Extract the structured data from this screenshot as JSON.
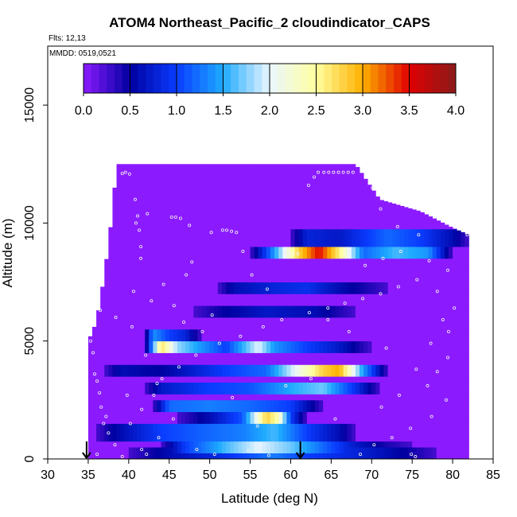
{
  "chart_data": {
    "type": "heatmap",
    "title": "ATOM4 Northeast_Pacific_2 cloudindicator_CAPS",
    "flights_label": "Flts: 12,13",
    "date_label": "MMDD: 0519,0521",
    "xlabel": "Latitude (deg N)",
    "ylabel": "Altitude (m)",
    "xlim": [
      30,
      85
    ],
    "ylim": [
      0,
      17500
    ],
    "x_ticks": [
      "30",
      "35",
      "40",
      "45",
      "50",
      "55",
      "60",
      "65",
      "70",
      "75",
      "80",
      "85"
    ],
    "y_ticks": [
      "0",
      "5000",
      "10000",
      "15000"
    ],
    "colorbar": {
      "range": [
        0,
        4
      ],
      "tick_labels": [
        "0.0",
        "0.5",
        "1.0",
        "1.5",
        "2.0",
        "2.5",
        "3.0",
        "3.5",
        "4.0"
      ],
      "colors": [
        "#8c1aff",
        "#0000a0",
        "#0a3cff",
        "#1eaaff",
        "#eaf6ff",
        "#ffffa0",
        "#ffb000",
        "#e00000",
        "#8b1a1a"
      ]
    },
    "background_value": 0,
    "column_extent": [
      {
        "lat": 35,
        "top": 5000
      },
      {
        "lat": 36,
        "top": 5800
      },
      {
        "lat": 37,
        "top": 7800
      },
      {
        "lat": 38,
        "top": 10500
      },
      {
        "lat": 38.5,
        "top": 12500
      },
      {
        "lat": 68,
        "top": 12500
      },
      {
        "lat": 71,
        "top": 11000
      },
      {
        "lat": 76,
        "top": 10500
      },
      {
        "lat": 80,
        "top": 9800
      },
      {
        "lat": 82,
        "top": 9500
      }
    ],
    "cloud_layers": [
      {
        "alt": 9400,
        "lat_range": [
          60,
          82
        ],
        "peaks": [
          [
            62,
            0.8
          ],
          [
            66,
            0.7
          ],
          [
            72,
            1.2
          ],
          [
            76,
            1.0
          ],
          [
            80,
            0.6
          ]
        ]
      },
      {
        "alt": 8800,
        "lat_range": [
          55,
          80
        ],
        "peaks": [
          [
            57,
            1.0
          ],
          [
            61,
            2.8
          ],
          [
            63.5,
            3.5
          ],
          [
            66,
            2.6
          ],
          [
            69,
            1.2
          ],
          [
            73,
            1.6
          ],
          [
            77,
            1.4
          ]
        ]
      },
      {
        "alt": 7200,
        "lat_range": [
          51,
          72
        ],
        "peaks": [
          [
            53,
            0.6
          ],
          [
            58,
            0.8
          ],
          [
            62,
            0.9
          ],
          [
            66,
            0.6
          ]
        ]
      },
      {
        "alt": 6300,
        "lat_range": [
          48,
          68
        ],
        "peaks": [
          [
            52,
            0.5
          ],
          [
            57,
            0.7
          ],
          [
            63,
            0.6
          ]
        ]
      },
      {
        "alt": 5300,
        "lat_range": [
          42,
          49
        ],
        "peaks": [
          [
            43,
            1.4
          ],
          [
            45,
            1.0
          ],
          [
            47,
            0.8
          ]
        ]
      },
      {
        "alt": 4700,
        "lat_range": [
          42,
          70
        ],
        "peaks": [
          [
            44,
            2.7
          ],
          [
            46,
            1.8
          ],
          [
            52,
            1.0
          ],
          [
            56,
            2.0
          ],
          [
            58,
            1.4
          ],
          [
            62,
            1.0
          ],
          [
            66,
            0.7
          ]
        ]
      },
      {
        "alt": 3700,
        "lat_range": [
          37,
          72
        ],
        "peaks": [
          [
            39,
            0.6
          ],
          [
            44,
            0.5
          ],
          [
            52,
            1.0
          ],
          [
            57,
            1.2
          ],
          [
            60,
            1.9
          ],
          [
            64,
            2.8
          ],
          [
            66,
            3.0
          ],
          [
            69,
            1.4
          ]
        ]
      },
      {
        "alt": 3000,
        "lat_range": [
          42,
          71
        ],
        "peaks": [
          [
            44,
            0.7
          ],
          [
            50,
            1.0
          ],
          [
            55,
            1.1
          ],
          [
            60,
            1.5
          ],
          [
            64,
            1.7
          ],
          [
            68,
            0.9
          ]
        ]
      },
      {
        "alt": 2300,
        "lat_range": [
          43,
          64
        ],
        "peaks": [
          [
            45,
            1.2
          ],
          [
            50,
            1.3
          ],
          [
            55,
            1.2
          ],
          [
            60,
            1.0
          ]
        ]
      },
      {
        "alt": 1700,
        "lat_range": [
          46,
          62
        ],
        "peaks": [
          [
            50,
            0.6
          ],
          [
            54,
            1.1
          ],
          [
            57,
            2.8
          ],
          [
            58.5,
            2.4
          ],
          [
            60,
            1.0
          ]
        ]
      },
      {
        "alt": 1100,
        "lat_range": [
          36,
          68
        ],
        "peaks": [
          [
            38,
            0.5
          ],
          [
            44,
            1.0
          ],
          [
            50,
            1.2
          ],
          [
            54,
            1.3
          ],
          [
            58,
            1.6
          ],
          [
            62,
            1.0
          ],
          [
            66,
            0.6
          ]
        ]
      },
      {
        "alt": 500,
        "lat_range": [
          44,
          75
        ],
        "peaks": [
          [
            47,
            1.0
          ],
          [
            52,
            1.6
          ],
          [
            56,
            2.0
          ],
          [
            60,
            1.7
          ],
          [
            64,
            1.2
          ],
          [
            68,
            0.7
          ],
          [
            72,
            0.4
          ]
        ]
      },
      {
        "alt": 100,
        "lat_range": [
          40,
          78
        ],
        "peaks": [
          [
            45,
            0.6
          ],
          [
            52,
            0.9
          ],
          [
            58,
            1.3
          ],
          [
            62,
            1.0
          ],
          [
            68,
            0.8
          ],
          [
            74,
            0.5
          ]
        ]
      }
    ],
    "markers": [
      {
        "lat": 34.8,
        "alt": 0,
        "symbol": "arrow-down"
      },
      {
        "lat": 61.2,
        "alt": 0,
        "symbol": "arrow-down"
      }
    ],
    "open_circles": [
      [
        39.2,
        12100
      ],
      [
        39.6,
        12150
      ],
      [
        40.1,
        12080
      ],
      [
        40.8,
        11000
      ],
      [
        41.1,
        10300
      ],
      [
        40.9,
        10000
      ],
      [
        41.3,
        9700
      ],
      [
        42.3,
        10400
      ],
      [
        41.5,
        9000
      ],
      [
        41.5,
        8500
      ],
      [
        45.3,
        10250
      ],
      [
        45.8,
        10250
      ],
      [
        46.4,
        10200
      ],
      [
        47.5,
        9900
      ],
      [
        50.2,
        9600
      ],
      [
        51.6,
        9700
      ],
      [
        52.1,
        9700
      ],
      [
        52.7,
        9650
      ],
      [
        53.3,
        9600
      ],
      [
        54.1,
        8800
      ],
      [
        59.3,
        8700
      ],
      [
        59.8,
        8700
      ],
      [
        60.3,
        8700
      ],
      [
        60.9,
        8700
      ],
      [
        62.2,
        11600
      ],
      [
        62.9,
        11950
      ],
      [
        63.4,
        12150
      ],
      [
        64.1,
        12150
      ],
      [
        64.7,
        12150
      ],
      [
        65.3,
        12150
      ],
      [
        65.9,
        12150
      ],
      [
        66.5,
        12150
      ],
      [
        67.1,
        12150
      ],
      [
        67.7,
        12150
      ],
      [
        70.1,
        11500
      ],
      [
        71.1,
        10600
      ],
      [
        73.2,
        9850
      ],
      [
        75.8,
        9500
      ],
      [
        81.8,
        9500
      ],
      [
        47.8,
        8350
      ],
      [
        47.1,
        7800
      ],
      [
        44.3,
        7400
      ],
      [
        36.5,
        6300
      ],
      [
        38.4,
        6000
      ],
      [
        40.4,
        5600
      ],
      [
        46.8,
        5800
      ],
      [
        49.1,
        5400
      ],
      [
        35.3,
        5000
      ],
      [
        35.6,
        4500
      ],
      [
        35.8,
        3600
      ],
      [
        36.1,
        3300
      ],
      [
        36.4,
        2800
      ],
      [
        36.6,
        2200
      ],
      [
        37.2,
        1800
      ],
      [
        36.9,
        1500
      ],
      [
        37.5,
        1100
      ],
      [
        40.2,
        1500
      ],
      [
        41.6,
        2100
      ],
      [
        43.1,
        2700
      ],
      [
        44.1,
        3400
      ],
      [
        46.2,
        3900
      ],
      [
        48.3,
        4400
      ],
      [
        51.2,
        4900
      ],
      [
        53.8,
        5200
      ],
      [
        56.6,
        5600
      ],
      [
        58.9,
        5900
      ],
      [
        62.3,
        6200
      ],
      [
        64.6,
        6400
      ],
      [
        66.7,
        6600
      ],
      [
        68.9,
        6800
      ],
      [
        71.1,
        7000
      ],
      [
        73.3,
        7300
      ],
      [
        75.6,
        7600
      ],
      [
        78.1,
        7100
      ],
      [
        80.2,
        6400
      ],
      [
        78.8,
        5900
      ],
      [
        79.5,
        5400
      ],
      [
        77.3,
        4900
      ],
      [
        79.4,
        4300
      ],
      [
        78.1,
        3700
      ],
      [
        76.9,
        3100
      ],
      [
        79.2,
        2500
      ],
      [
        77.4,
        1800
      ],
      [
        74.8,
        1300
      ],
      [
        72.5,
        900
      ],
      [
        70.3,
        600
      ],
      [
        68.6,
        200
      ],
      [
        74.9,
        200
      ],
      [
        75.4,
        100
      ],
      [
        41.6,
        400
      ],
      [
        42.2,
        200
      ],
      [
        39.2,
        100
      ],
      [
        48.4,
        400
      ],
      [
        50.6,
        200
      ],
      [
        54.8,
        350
      ],
      [
        57.3,
        150
      ],
      [
        36.1,
        200
      ],
      [
        38.3,
        600
      ],
      [
        43.7,
        900
      ],
      [
        55.9,
        1400
      ],
      [
        65.5,
        1700
      ],
      [
        71.2,
        2200
      ],
      [
        73.4,
        2700
      ],
      [
        75.5,
        3800
      ],
      [
        71.8,
        4700
      ],
      [
        67.2,
        5400
      ],
      [
        64.6,
        5900
      ],
      [
        57.1,
        7200
      ],
      [
        55.2,
        7800
      ],
      [
        42.1,
        4400
      ],
      [
        43.5,
        3200
      ],
      [
        39.8,
        2700
      ],
      [
        45.5,
        1700
      ],
      [
        52.8,
        2600
      ],
      [
        59.4,
        3100
      ],
      [
        62.5,
        3400
      ],
      [
        69.2,
        8200
      ],
      [
        71.4,
        8500
      ],
      [
        73.6,
        8800
      ],
      [
        77.1,
        8400
      ],
      [
        79.4,
        8000
      ],
      [
        40.6,
        7100
      ],
      [
        42.8,
        6700
      ],
      [
        45.6,
        6500
      ],
      [
        50.3,
        6100
      ]
    ]
  }
}
